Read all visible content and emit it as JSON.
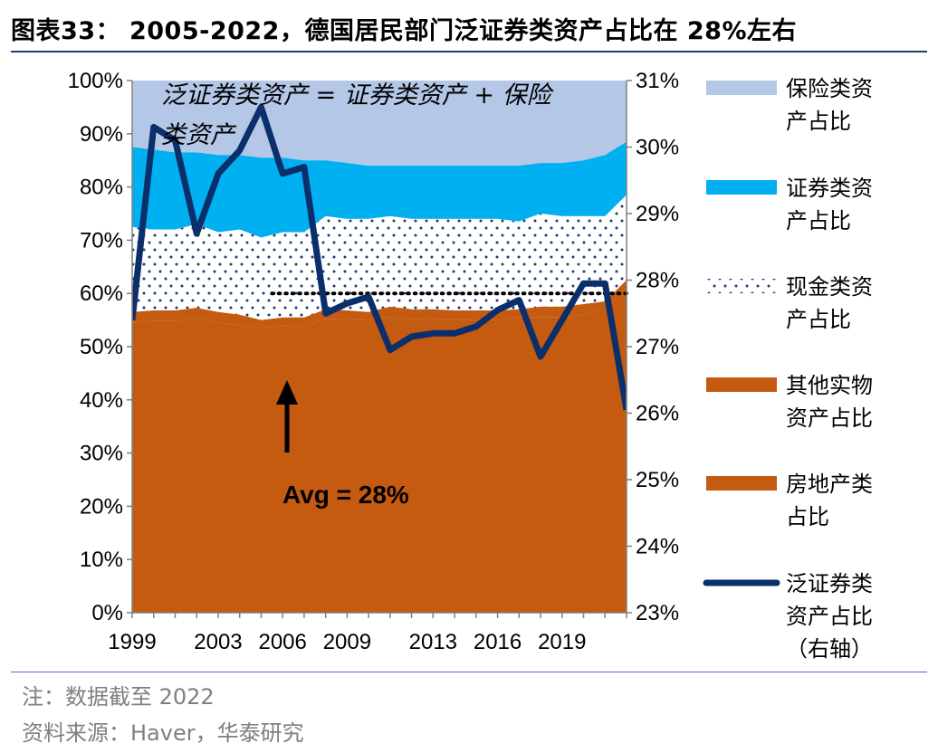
{
  "header": {
    "title": "图表33： 2005-2022，德国居民部门泛证券类资产占比在 28%左右"
  },
  "footer": {
    "note": "注：数据截至 2022",
    "source": "资料来源：Haver，华泰研究"
  },
  "colors": {
    "insurance": "#b4c7e7",
    "securities": "#00b0f0",
    "cash_dots": "#1f3b73",
    "other_real": "#c55a11",
    "real_estate": "#c55a11",
    "line": "#0b2f6b"
  },
  "chart_data": {
    "type": "area",
    "x": [
      1999,
      2000,
      2001,
      2002,
      2003,
      2004,
      2005,
      2006,
      2007,
      2008,
      2009,
      2010,
      2011,
      2012,
      2013,
      2014,
      2015,
      2016,
      2017,
      2018,
      2019,
      2020,
      2021,
      2022
    ],
    "x_tick_labels": [
      "1999",
      "2003",
      "2006",
      "2009",
      "2013",
      "2016",
      "2019"
    ],
    "x_tick_values": [
      1999,
      2003,
      2006,
      2009,
      2013,
      2016,
      2019
    ],
    "left_axis": {
      "ylim": [
        0,
        100
      ],
      "ticks": [
        "0%",
        "10%",
        "20%",
        "30%",
        "40%",
        "50%",
        "60%",
        "70%",
        "80%",
        "90%",
        "100%"
      ]
    },
    "right_axis": {
      "ylim": [
        23,
        31
      ],
      "ticks": [
        "23%",
        "24%",
        "25%",
        "26%",
        "27%",
        "28%",
        "29%",
        "30%",
        "31%"
      ]
    },
    "stack_tops": {
      "real_estate": [
        54.5,
        54.8,
        54.8,
        55.5,
        54.5,
        54.0,
        53.5,
        54.0,
        53.8,
        55.2,
        55.0,
        55.0,
        55.5,
        55.2,
        55.0,
        55.0,
        55.0,
        55.0,
        55.5,
        55.5,
        55.5,
        56.0,
        57.0,
        61.0
      ],
      "other_real": [
        56.5,
        56.8,
        56.8,
        57.3,
        56.5,
        56.0,
        55.0,
        55.5,
        55.5,
        57.0,
        56.8,
        56.5,
        57.5,
        57.0,
        57.0,
        56.8,
        56.8,
        56.8,
        57.0,
        57.5,
        57.5,
        58.0,
        58.5,
        62.5
      ],
      "cash": [
        72.5,
        72.0,
        72.0,
        73.0,
        71.5,
        72.0,
        70.5,
        71.5,
        71.5,
        74.5,
        74.0,
        74.0,
        74.5,
        74.0,
        74.0,
        74.0,
        74.0,
        74.0,
        73.5,
        75.0,
        74.5,
        74.5,
        74.5,
        78.5
      ],
      "securities": [
        87.5,
        87.0,
        86.5,
        86.5,
        86.0,
        86.0,
        85.5,
        85.5,
        85.0,
        85.0,
        84.5,
        84.0,
        84.0,
        84.0,
        84.0,
        84.0,
        84.0,
        84.0,
        84.0,
        84.5,
        84.5,
        85.0,
        86.0,
        88.5
      ],
      "insurance": [
        100,
        100,
        100,
        100,
        100,
        100,
        100,
        100,
        100,
        100,
        100,
        100,
        100,
        100,
        100,
        100,
        100,
        100,
        100,
        100,
        100,
        100,
        100,
        100
      ]
    },
    "line_series": {
      "name": "泛证券类资产占比（右轴）",
      "values": [
        27.4,
        30.3,
        30.1,
        28.7,
        29.6,
        29.95,
        30.6,
        29.6,
        29.7,
        27.5,
        27.65,
        27.75,
        26.95,
        27.15,
        27.2,
        27.2,
        27.3,
        27.55,
        27.7,
        26.85,
        27.4,
        27.95,
        27.95,
        26.05
      ]
    },
    "avg_line": {
      "value": 27.8,
      "x_start": 2005.5,
      "x_end": 2022
    },
    "legend": [
      "保险类资产占比",
      "证券类资产占比",
      "现金类资产占比",
      "其他实物资产占比",
      "房地产类占比",
      "泛证券类资产占比（右轴）"
    ],
    "annotations": {
      "formula": "泛证券类资产 = 证券类资产 + 保险类资产",
      "avg": "Avg = 28%"
    }
  }
}
